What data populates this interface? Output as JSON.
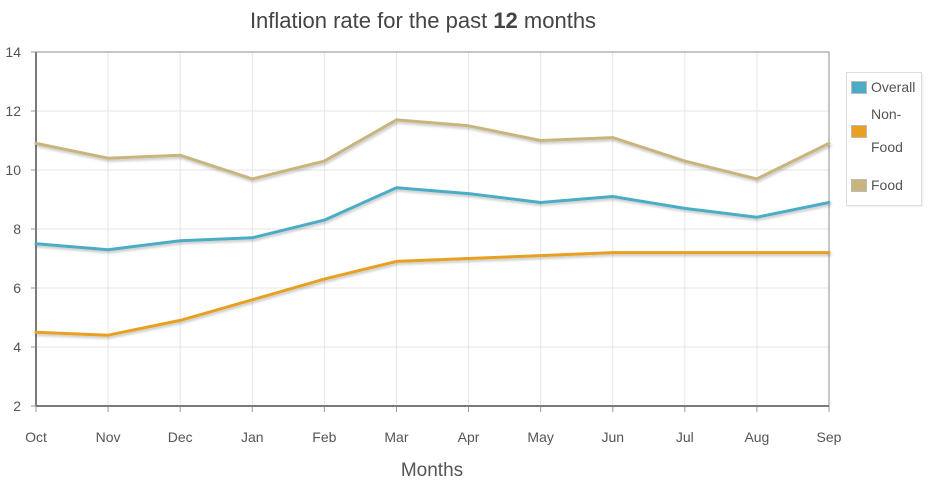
{
  "chart_data": {
    "type": "line",
    "title_parts": [
      "Inflation rate for the past ",
      "12",
      " months"
    ],
    "xlabel": "Months",
    "ylabel": "",
    "categories": [
      "Oct",
      "Nov",
      "Dec",
      "Jan",
      "Feb",
      "Mar",
      "Apr",
      "May",
      "Jun",
      "Jul",
      "Aug",
      "Sep"
    ],
    "ylim": [
      2,
      14
    ],
    "yticks": [
      "2",
      "4",
      "6",
      "8",
      "10",
      "12",
      "14"
    ],
    "grid": true,
    "legend_position": "right",
    "series": [
      {
        "name": "Overall",
        "color": "#4bacc6",
        "values": [
          7.5,
          7.3,
          7.6,
          7.7,
          8.3,
          9.4,
          9.2,
          8.9,
          9.1,
          8.7,
          8.4,
          8.9
        ]
      },
      {
        "name": "Non-Food",
        "color": "#e8a020",
        "values": [
          4.5,
          4.4,
          4.9,
          5.6,
          6.3,
          6.9,
          7.0,
          7.1,
          7.2,
          7.2,
          7.2,
          7.2
        ]
      },
      {
        "name": "Food",
        "color": "#c8b47c",
        "values": [
          10.9,
          10.4,
          10.5,
          9.7,
          10.3,
          11.7,
          11.5,
          11.0,
          11.1,
          10.3,
          9.7,
          10.9
        ]
      }
    ]
  }
}
